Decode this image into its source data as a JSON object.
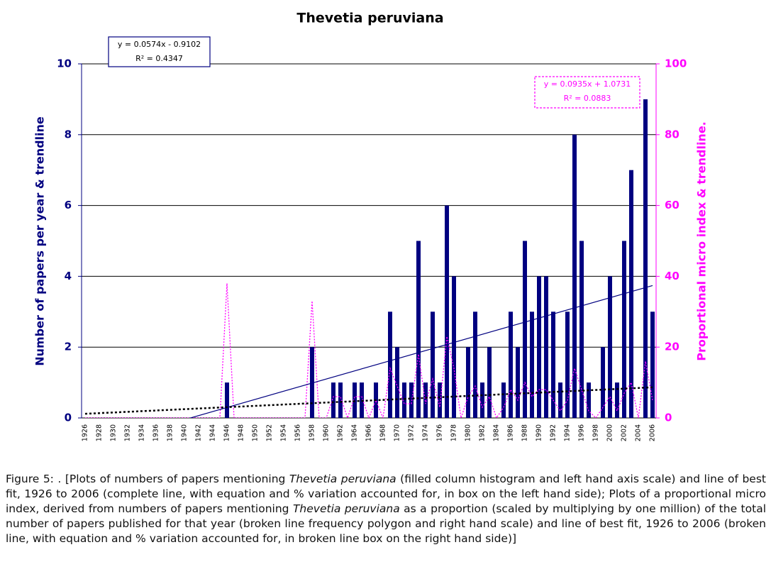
{
  "chart_data": {
    "type": "bar",
    "title": "Thevetia peruviana",
    "y_label": "Number of papers per year & trendline",
    "y2_label": "Proportional micro index & trendline.",
    "categories": [
      "1926",
      null,
      "1928",
      null,
      "1930",
      null,
      "1932",
      null,
      "1934",
      null,
      "1936",
      null,
      "1938",
      null,
      "1940",
      null,
      "1942",
      null,
      "1944",
      null,
      "1946",
      null,
      "1948",
      null,
      "1950",
      null,
      "1952",
      null,
      "1954",
      null,
      "1956",
      null,
      "1958",
      null,
      "1960",
      null,
      "1962",
      null,
      "1964",
      null,
      "1966",
      null,
      "1968",
      null,
      "1970",
      null,
      "1972",
      null,
      "1974",
      null,
      "1976",
      null,
      "1978",
      null,
      "1980",
      null,
      "1982",
      null,
      "1984",
      null,
      "1986",
      null,
      "1988",
      null,
      "1990",
      null,
      "1992",
      null,
      "1994",
      null,
      "1996",
      null,
      "1998",
      null,
      "2000",
      null,
      "2002",
      null,
      "2004",
      null,
      "2006"
    ],
    "series": [
      {
        "color": "#000080",
        "values": [
          0,
          0,
          0,
          0,
          0,
          0,
          0,
          0,
          0,
          0,
          0,
          0,
          0,
          0,
          0,
          0,
          0,
          0,
          0,
          0,
          1,
          0,
          0,
          0,
          0,
          0,
          0,
          0,
          0,
          0,
          0,
          0,
          2,
          0,
          0,
          1,
          1,
          0,
          1,
          1,
          0,
          1,
          0,
          3,
          2,
          1,
          1,
          5,
          1,
          3,
          1,
          6,
          4,
          0,
          2,
          3,
          1,
          2,
          0,
          1,
          3,
          2,
          5,
          3,
          4,
          4,
          3,
          1,
          3,
          8,
          5,
          1,
          0,
          2,
          4,
          1,
          5,
          7,
          0,
          9,
          3
        ]
      },
      {
        "color": "#ff00ff",
        "axis": "y2",
        "values": [
          0,
          0,
          0,
          0,
          0,
          0,
          0,
          0,
          0,
          0,
          0,
          0,
          0,
          0,
          0,
          0,
          0,
          0,
          0,
          0,
          38,
          0,
          0,
          0,
          0,
          0,
          0,
          0,
          0,
          0,
          0,
          0,
          33,
          0,
          0,
          6,
          6,
          0,
          6,
          6,
          0,
          5,
          0,
          14,
          9,
          4,
          4,
          18,
          4,
          11,
          3,
          23,
          14,
          0,
          6,
          9,
          3,
          6,
          0,
          3,
          8,
          5,
          10,
          6,
          8,
          8,
          5,
          2,
          5,
          14,
          8,
          2,
          0,
          3,
          6,
          2,
          7,
          10,
          0,
          16,
          5
        ]
      }
    ],
    "trendlines": [
      {
        "label": "y = 0.0574x - 0.9102",
        "r2_label": "R² = 0.4347",
        "slope": 0.0574,
        "intercept": -0.9102,
        "color": "#000080"
      },
      {
        "label": "y = 0.0935x + 1.0731",
        "r2_label": "R² = 0.0883",
        "slope": 0.0935,
        "intercept": 1.0731,
        "axis": "y2",
        "color": "#000000",
        "box_color": "#ff00ff"
      }
    ],
    "ylim": [
      0,
      10
    ],
    "yticks": [
      0,
      2,
      4,
      6,
      8,
      10
    ],
    "y2lim": [
      0,
      100
    ],
    "y2ticks": [
      0,
      20,
      40,
      60,
      80,
      100
    ],
    "grid": true
  },
  "caption": [
    "Figure 5: . [Plots of numbers of papers mentioning ",
    "Thevetia peruviana",
    " (filled column histogram and left hand axis scale) and line of best fit, 1926 to 2006 (complete line, with equation and % variation accounted for, in box on the left hand side); Plots of a proportional micro index, derived from numbers of papers mentioning ",
    "Thevetia peruviana",
    " as a proportion (scaled by multiplying by one million) of the total number of papers published for that year (broken line frequency polygon and right hand scale) and line of best fit, 1926 to 2006 (broken line, with equation and % variation accounted for, in broken line box on the right hand side)]"
  ]
}
